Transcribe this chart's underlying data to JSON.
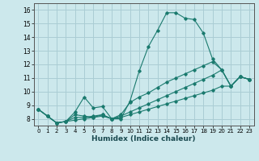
{
  "xlabel": "Humidex (Indice chaleur)",
  "bg_color": "#cce8ec",
  "grid_color": "#aacdd4",
  "line_color": "#1a7a6e",
  "xlim": [
    -0.5,
    23.5
  ],
  "ylim": [
    7.5,
    16.5
  ],
  "xticks": [
    0,
    1,
    2,
    3,
    4,
    5,
    6,
    7,
    8,
    9,
    10,
    11,
    12,
    13,
    14,
    15,
    16,
    17,
    18,
    19,
    20,
    21,
    22,
    23
  ],
  "yticks": [
    8,
    9,
    10,
    11,
    12,
    13,
    14,
    15,
    16
  ],
  "line1_x": [
    0,
    1,
    2,
    3,
    4,
    5,
    6,
    7,
    8,
    9,
    10,
    11,
    12,
    13,
    14,
    15,
    16,
    17,
    18,
    19,
    20,
    21,
    22,
    23
  ],
  "line1_y": [
    8.7,
    8.2,
    7.7,
    7.8,
    8.5,
    9.6,
    8.8,
    8.9,
    8.0,
    8.0,
    9.3,
    11.5,
    13.3,
    14.5,
    15.8,
    15.8,
    15.4,
    15.3,
    14.3,
    12.4,
    11.6,
    10.4,
    11.1,
    10.9
  ],
  "line2_x": [
    0,
    1,
    2,
    3,
    4,
    5,
    6,
    7,
    8,
    9,
    10,
    11,
    12,
    13,
    14,
    15,
    16,
    17,
    18,
    19,
    20,
    21,
    22,
    23
  ],
  "line2_y": [
    8.7,
    8.2,
    7.7,
    7.8,
    8.3,
    8.2,
    8.1,
    8.3,
    8.0,
    8.3,
    9.2,
    9.6,
    9.9,
    10.3,
    10.7,
    11.0,
    11.3,
    11.6,
    11.9,
    12.2,
    11.6,
    10.4,
    11.1,
    10.9
  ],
  "line3_x": [
    0,
    1,
    2,
    3,
    4,
    5,
    6,
    7,
    8,
    9,
    10,
    11,
    12,
    13,
    14,
    15,
    16,
    17,
    18,
    19,
    20,
    21,
    22,
    23
  ],
  "line3_y": [
    8.7,
    8.2,
    7.7,
    7.8,
    8.1,
    8.1,
    8.2,
    8.3,
    8.0,
    8.2,
    8.5,
    8.8,
    9.1,
    9.4,
    9.7,
    10.0,
    10.3,
    10.6,
    10.9,
    11.2,
    11.6,
    10.4,
    11.1,
    10.9
  ],
  "line4_x": [
    0,
    1,
    2,
    3,
    4,
    5,
    6,
    7,
    8,
    9,
    10,
    11,
    12,
    13,
    14,
    15,
    16,
    17,
    18,
    19,
    20,
    21,
    22,
    23
  ],
  "line4_y": [
    8.7,
    8.2,
    7.7,
    7.8,
    7.9,
    8.0,
    8.1,
    8.2,
    8.0,
    8.1,
    8.3,
    8.5,
    8.7,
    8.9,
    9.1,
    9.3,
    9.5,
    9.7,
    9.9,
    10.1,
    10.4,
    10.4,
    11.1,
    10.9
  ]
}
